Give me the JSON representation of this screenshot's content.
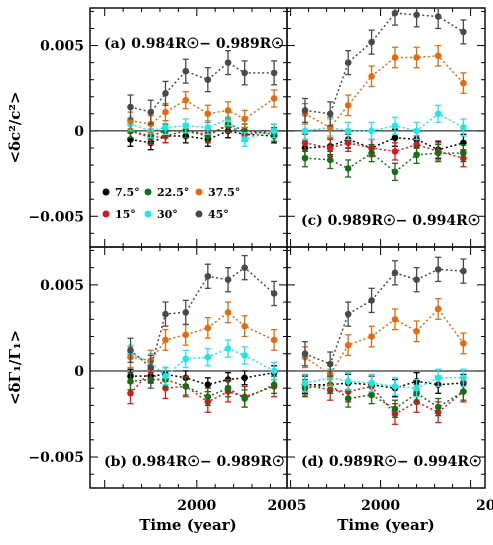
{
  "figure": {
    "xlabel": "Time (year)",
    "ylabel_top": "<δc²/c²>",
    "ylabel_bottom": "<δΓ₁/Γ₁>",
    "y_tick_labels": [
      "0.005",
      "0",
      "−0.005"
    ],
    "x_tick_labels": [
      "2000",
      "2005"
    ],
    "x_tick_label_right_partial": "20"
  },
  "colors": {
    "7.5": "#000000",
    "15": "#e0141e",
    "22.5": "#157015",
    "30": "#1de8e8",
    "37.5": "#e66a0e",
    "45": "#4a4a4a"
  },
  "legend": [
    {
      "key": "7.5",
      "label": "7.5°"
    },
    {
      "key": "22.5",
      "label": "22.5°"
    },
    {
      "key": "37.5",
      "label": "37.5°"
    },
    {
      "key": "15",
      "label": "15°"
    },
    {
      "key": "30",
      "label": "30°"
    },
    {
      "key": "45",
      "label": "45°"
    }
  ],
  "chart_data": [
    {
      "type": "scatter",
      "panel": "a",
      "title": "(a) 0.984R☉− 0.989R☉",
      "x": [
        1996.4,
        1997.5,
        1998.3,
        1999.4,
        2000.6,
        2001.7,
        2002.6,
        2004.2
      ],
      "xlim": [
        1994.2,
        2004.9
      ],
      "ylim": [
        -0.0068,
        0.0072
      ],
      "series": [
        {
          "name": "7.5°",
          "color_key": "7.5",
          "values": [
            -0.0005,
            -0.0007,
            -0.0003,
            -0.0003,
            -0.0005,
            0.0,
            -0.0002,
            -0.0003
          ],
          "errors": [
            0.0004,
            0.0004,
            0.0004,
            0.0004,
            0.0004,
            0.0004,
            0.0004,
            0.0004
          ]
        },
        {
          "name": "15°",
          "color_key": "15",
          "values": [
            0.0,
            -0.0004,
            -0.0003,
            0.0,
            -0.0002,
            0.0003,
            -0.0002,
            0.0
          ],
          "errors": [
            0.0004,
            0.0004,
            0.0004,
            0.0004,
            0.0004,
            0.0004,
            0.0004,
            0.0004
          ]
        },
        {
          "name": "22.5°",
          "color_key": "22.5",
          "values": [
            0.0,
            -0.0003,
            0.0,
            0.0,
            -0.0003,
            0.0004,
            0.0,
            -0.0002
          ],
          "errors": [
            0.0004,
            0.0004,
            0.0004,
            0.0004,
            0.0004,
            0.0004,
            0.0004,
            0.0004
          ]
        },
        {
          "name": "30°",
          "color_key": "30",
          "values": [
            0.0004,
            0.0,
            0.0002,
            0.0003,
            0.0002,
            0.0007,
            -0.0005,
            0.0
          ],
          "errors": [
            0.0004,
            0.0004,
            0.0004,
            0.0004,
            0.0004,
            0.0004,
            0.0004,
            0.0004
          ]
        },
        {
          "name": "37.5°",
          "color_key": "37.5",
          "values": [
            0.0006,
            0.0004,
            0.0011,
            0.0018,
            0.001,
            0.0012,
            0.0007,
            0.0019
          ],
          "errors": [
            0.0005,
            0.0005,
            0.0005,
            0.0005,
            0.0005,
            0.0005,
            0.0005,
            0.0005
          ]
        },
        {
          "name": "45°",
          "color_key": "45",
          "values": [
            0.0014,
            0.0011,
            0.0022,
            0.0035,
            0.003,
            0.004,
            0.0034,
            0.0034
          ],
          "errors": [
            0.0007,
            0.0007,
            0.0007,
            0.0007,
            0.0007,
            0.0007,
            0.0007,
            0.0007
          ]
        }
      ]
    },
    {
      "type": "scatter",
      "panel": "c",
      "title": "(c) 0.989R☉− 0.994R☉",
      "x": [
        1995.8,
        1997.2,
        1998.2,
        1999.5,
        2000.8,
        2002.0,
        2003.2,
        2004.6
      ],
      "xlim": [
        1994.8,
        2005.8
      ],
      "ylim": [
        -0.0068,
        0.0072
      ],
      "series": [
        {
          "name": "7.5°",
          "color_key": "7.5",
          "values": [
            -0.001,
            -0.0009,
            -0.0005,
            -0.001,
            -0.0004,
            -0.0005,
            -0.0011,
            -0.0007
          ],
          "errors": [
            0.0005,
            0.0005,
            0.0005,
            0.0005,
            0.0005,
            0.0005,
            0.0005,
            0.0005
          ]
        },
        {
          "name": "15°",
          "color_key": "15",
          "values": [
            -0.0007,
            -0.001,
            -0.0007,
            -0.001,
            -0.0012,
            -0.0008,
            -0.0012,
            -0.0016
          ],
          "errors": [
            0.0005,
            0.0005,
            0.0005,
            0.0005,
            0.0005,
            0.0005,
            0.0005,
            0.0005
          ]
        },
        {
          "name": "22.5°",
          "color_key": "22.5",
          "values": [
            -0.0016,
            -0.0017,
            -0.0022,
            -0.0013,
            -0.0024,
            -0.0014,
            -0.0013,
            -0.0013
          ],
          "errors": [
            0.0005,
            0.0005,
            0.0005,
            0.0005,
            0.0005,
            0.0005,
            0.0005,
            0.0005
          ]
        },
        {
          "name": "30°",
          "color_key": "30",
          "values": [
            0.0,
            0.0002,
            0.0,
            0.0,
            0.0003,
            0.0,
            0.001,
            0.0002
          ],
          "errors": [
            0.0005,
            0.0005,
            0.0005,
            0.0005,
            0.0005,
            0.0005,
            0.0005,
            0.0005
          ]
        },
        {
          "name": "37.5°",
          "color_key": "37.5",
          "values": [
            0.001,
            0.0002,
            0.0015,
            0.0032,
            0.0043,
            0.0043,
            0.0044,
            0.0028
          ],
          "errors": [
            0.0006,
            0.0006,
            0.0006,
            0.0006,
            0.0006,
            0.0006,
            0.0006,
            0.0006
          ]
        },
        {
          "name": "45°",
          "color_key": "45",
          "values": [
            0.0012,
            0.001,
            0.004,
            0.0052,
            0.0069,
            0.0068,
            0.0067,
            0.0058
          ],
          "errors": [
            0.0007,
            0.0007,
            0.0007,
            0.0007,
            0.0007,
            0.0007,
            0.0007,
            0.0007
          ]
        }
      ]
    },
    {
      "type": "scatter",
      "panel": "b",
      "title": "(b) 0.984R☉− 0.989R☉",
      "x": [
        1996.4,
        1997.5,
        1998.3,
        1999.4,
        2000.6,
        2001.7,
        2002.6,
        2004.2
      ],
      "xlim": [
        1994.2,
        2004.9
      ],
      "ylim": [
        -0.0068,
        0.0072
      ],
      "series": [
        {
          "name": "7.5°",
          "color_key": "7.5",
          "values": [
            -0.0003,
            -0.0003,
            -0.0002,
            -0.0004,
            -0.0008,
            -0.0005,
            -0.0004,
            -0.0001
          ],
          "errors": [
            0.0004,
            0.0004,
            0.0004,
            0.0004,
            0.0004,
            0.0004,
            0.0004,
            0.0004
          ]
        },
        {
          "name": "15°",
          "color_key": "15",
          "values": [
            -0.0013,
            0.0,
            -0.001,
            -0.0009,
            -0.0018,
            -0.0012,
            -0.0015,
            -0.0009
          ],
          "errors": [
            0.0006,
            0.0006,
            0.0006,
            0.0006,
            0.0006,
            0.0006,
            0.0006,
            0.0006
          ]
        },
        {
          "name": "22.5°",
          "color_key": "22.5",
          "values": [
            -0.0006,
            -0.0005,
            -0.0005,
            -0.0009,
            -0.0015,
            -0.001,
            -0.0016,
            -0.0008
          ],
          "errors": [
            0.0005,
            0.0005,
            0.0005,
            0.0005,
            0.0005,
            0.0005,
            0.0005,
            0.0005
          ]
        },
        {
          "name": "30°",
          "color_key": "30",
          "values": [
            0.001,
            0.0005,
            -0.0003,
            0.0007,
            0.0008,
            0.0013,
            0.0009,
            0.0
          ],
          "errors": [
            0.0005,
            0.0005,
            0.0005,
            0.0005,
            0.0005,
            0.0005,
            0.0005,
            0.0005
          ]
        },
        {
          "name": "37.5°",
          "color_key": "37.5",
          "values": [
            0.0008,
            0.0006,
            0.0018,
            0.0021,
            0.0025,
            0.0034,
            0.0026,
            0.0018
          ],
          "errors": [
            0.0006,
            0.0006,
            0.0006,
            0.0006,
            0.0006,
            0.0006,
            0.0006,
            0.0006
          ]
        },
        {
          "name": "45°",
          "color_key": "45",
          "values": [
            0.0012,
            0.0002,
            0.0033,
            0.0034,
            0.0055,
            0.0053,
            0.006,
            0.0045
          ],
          "errors": [
            0.0007,
            0.0007,
            0.0007,
            0.0007,
            0.0007,
            0.0007,
            0.0007,
            0.0007
          ]
        }
      ]
    },
    {
      "type": "scatter",
      "panel": "d",
      "title": "(d) 0.989R☉− 0.994R☉",
      "x": [
        1995.8,
        1997.2,
        1998.2,
        1999.5,
        2000.8,
        2002.0,
        2003.2,
        2004.6
      ],
      "xlim": [
        1994.8,
        2005.8
      ],
      "ylim": [
        -0.0068,
        0.0072
      ],
      "series": [
        {
          "name": "7.5°",
          "color_key": "7.5",
          "values": [
            -0.0008,
            -0.0008,
            -0.0007,
            -0.0008,
            -0.001,
            -0.0006,
            -0.0008,
            -0.0007
          ],
          "errors": [
            0.0005,
            0.0005,
            0.0005,
            0.0005,
            0.0005,
            0.0005,
            0.0005,
            0.0005
          ]
        },
        {
          "name": "15°",
          "color_key": "15",
          "values": [
            -0.0008,
            -0.0011,
            -0.0012,
            -0.0009,
            -0.0025,
            -0.0018,
            -0.0024,
            -0.0012
          ],
          "errors": [
            0.0006,
            0.0006,
            0.0006,
            0.0006,
            0.0006,
            0.0006,
            0.0006,
            0.0006
          ]
        },
        {
          "name": "22.5°",
          "color_key": "22.5",
          "values": [
            -0.001,
            -0.0008,
            -0.0016,
            -0.0014,
            -0.0022,
            -0.0013,
            -0.0021,
            -0.0012
          ],
          "errors": [
            0.0005,
            0.0005,
            0.0005,
            0.0005,
            0.0005,
            0.0005,
            0.0005,
            0.0005
          ]
        },
        {
          "name": "30°",
          "color_key": "30",
          "values": [
            -0.0007,
            -0.0004,
            -0.0006,
            -0.0007,
            -0.0009,
            -0.001,
            -0.0004,
            -0.0004
          ],
          "errors": [
            0.0005,
            0.0005,
            0.0005,
            0.0005,
            0.0005,
            0.0005,
            0.0005,
            0.0005
          ]
        },
        {
          "name": "37.5°",
          "color_key": "37.5",
          "values": [
            0.0008,
            -0.0002,
            0.0015,
            0.002,
            0.003,
            0.0023,
            0.0036,
            0.0016
          ],
          "errors": [
            0.0006,
            0.0006,
            0.0006,
            0.0006,
            0.0006,
            0.0006,
            0.0006,
            0.0006
          ]
        },
        {
          "name": "45°",
          "color_key": "45",
          "values": [
            0.001,
            0.0004,
            0.0033,
            0.0041,
            0.0057,
            0.0053,
            0.0059,
            0.0058
          ],
          "errors": [
            0.0007,
            0.0007,
            0.0007,
            0.0007,
            0.0007,
            0.0007,
            0.0007,
            0.0007
          ]
        }
      ]
    }
  ]
}
